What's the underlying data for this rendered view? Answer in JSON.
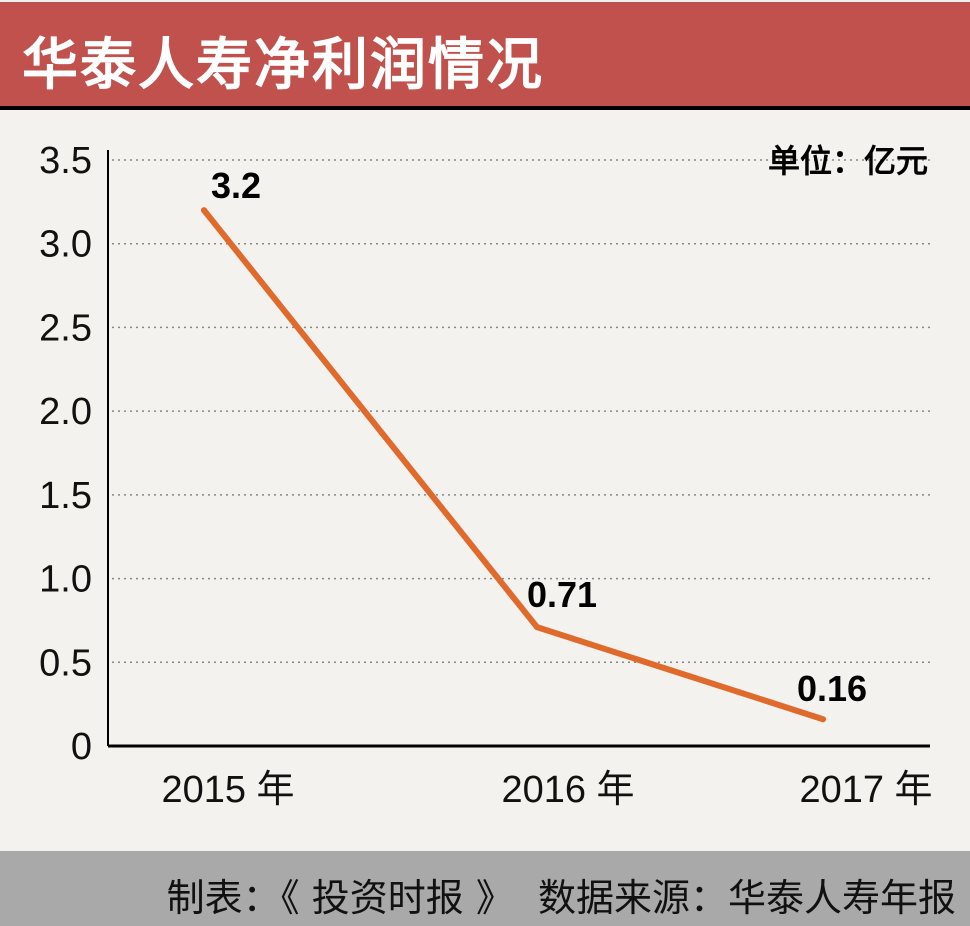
{
  "title": "华泰人寿净利润情况",
  "footer": "制表：《 投资时报 》  数据来源：华泰人寿年报",
  "chart_data": {
    "type": "line",
    "title": "华泰人寿净利润情况",
    "unit_label": "单位：亿元",
    "categories": [
      "2015 年",
      "2016 年",
      "2017 年"
    ],
    "values": [
      3.2,
      0.71,
      0.16
    ],
    "data_labels": [
      "3.2",
      "0.71",
      "0.16"
    ],
    "ylim": [
      0,
      3.5
    ],
    "yticks": [
      "0",
      "0.5",
      "1.0",
      "1.5",
      "2.0",
      "2.5",
      "3.0",
      "3.5"
    ],
    "grid": true,
    "line_color": "#e06a2c",
    "title_bar_color": "#c0514d"
  }
}
